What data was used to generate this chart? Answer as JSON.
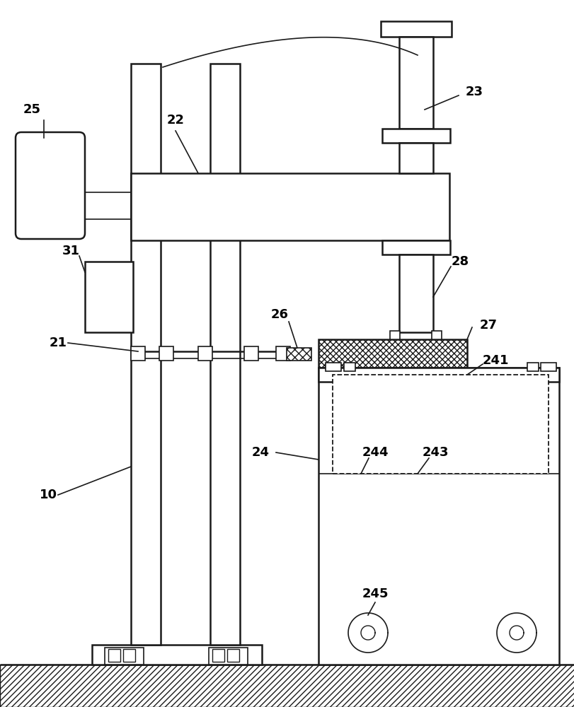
{
  "bg_color": "#ffffff",
  "lc": "#1a1a1a",
  "lw": 1.8,
  "lw_thin": 1.2
}
